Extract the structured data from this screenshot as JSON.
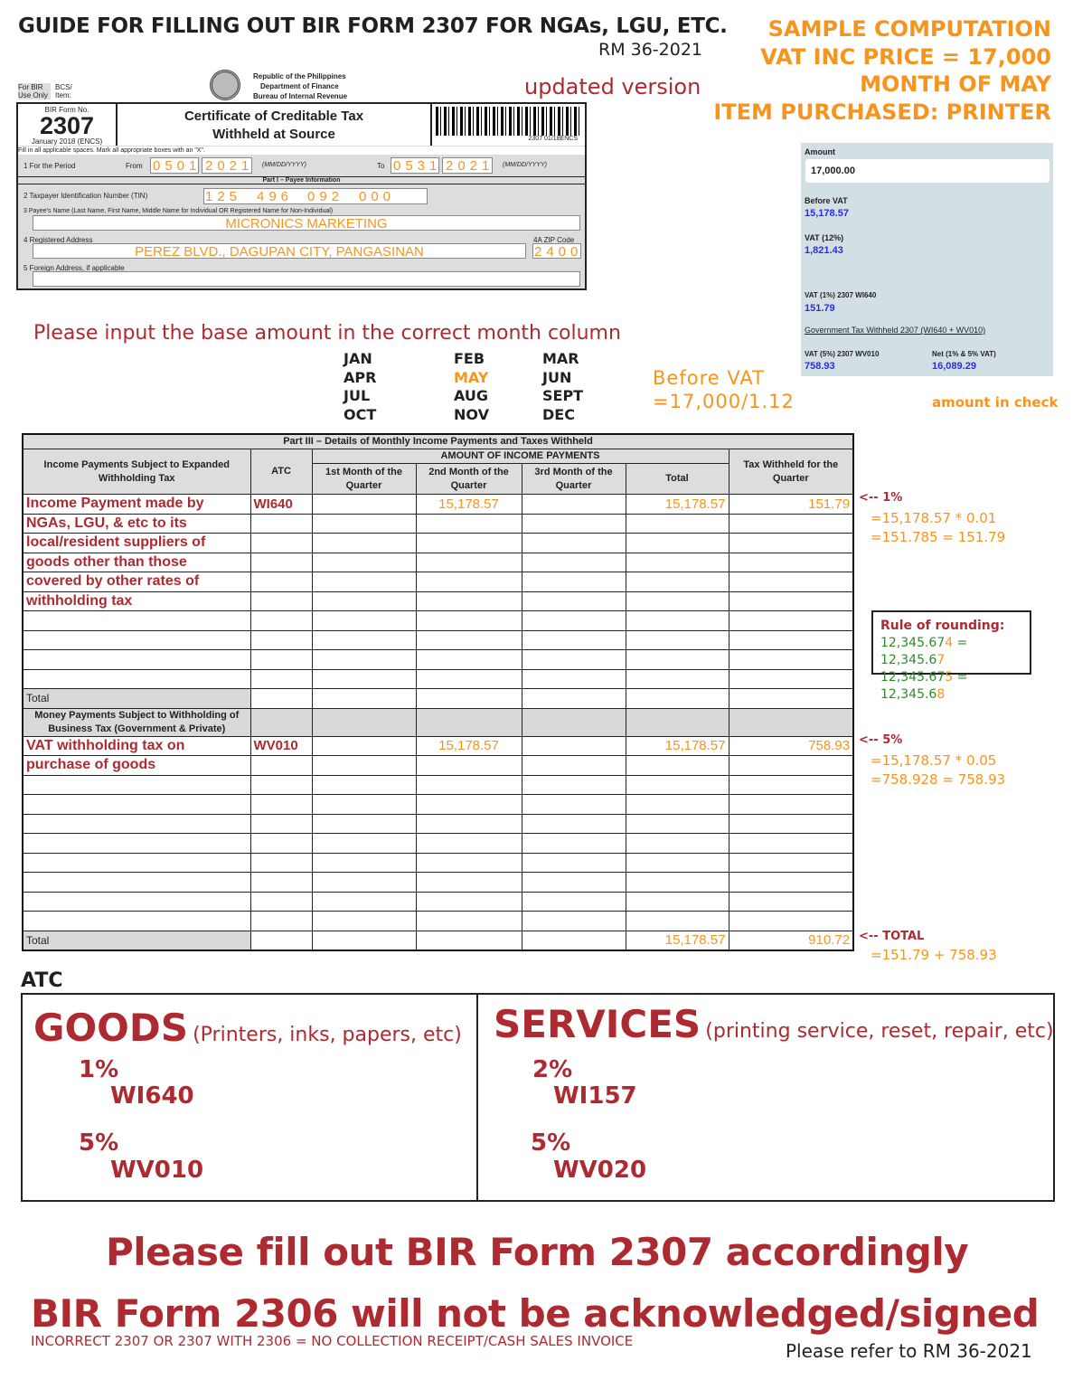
{
  "header": {
    "title": "GUIDE FOR FILLING OUT BIR FORM 2307 FOR NGAs, LGU, ETC.",
    "ref": "RM 36-2021",
    "updated_label": "updated version"
  },
  "sample": {
    "lines": [
      "SAMPLE COMPUTATION",
      "VAT INC PRICE = 17,000",
      "MONTH OF MAY",
      "ITEM PURCHASED: PRINTER"
    ]
  },
  "form": {
    "bir_use": "For BIR Use Only",
    "bcs": "BCS/ Item:",
    "agency": [
      "Republic of the Philippines",
      "Department of Finance",
      "Bureau of Internal Revenue"
    ],
    "form_no_label": "BIR Form No.",
    "form_no": "2307",
    "form_date": "January 2018 (ENCS)",
    "form_title_1": "Certificate of Creditable Tax",
    "form_title_2": "Withheld at Source",
    "barcode_code": "2307 01/18ENCS",
    "instructions": "Fill in all applicable spaces. Mark all appropriate boxes with an \"X\".",
    "period_label": "1    For the Period",
    "from_label": "From",
    "from_mmdd": "0501",
    "from_yyyy": "2021",
    "fmt": "(MM/DD/YYYY)",
    "to_label": "To",
    "to_mmdd": "0531",
    "to_yyyy": "2021",
    "part1": "Part I – Payee Information",
    "tin_label": "2   Taxpayer Identification Number (TIN)",
    "tin": [
      "125",
      "496",
      "092",
      "000"
    ],
    "name_label": "3   Payee's Name (Last Name, First Name, Middle Name for Individual OR Registered Name for Non-Individual)",
    "name": "MICRONICS MARKETING",
    "addr_label": "4   Registered Address",
    "addr": "PEREZ BLVD., DAGUPAN CITY, PANGASINAN",
    "zip_label": "4A  ZIP Code",
    "zip": "2400",
    "foreign_label": "5   Foreign Address, if applicable"
  },
  "panel": {
    "amount_label": "Amount",
    "amount": "17,000.00",
    "before_vat_label": "Before VAT",
    "before_vat": "15,178.57",
    "vat_label": "VAT (12%)",
    "vat": "1,821.43",
    "vat1_label": "VAT (1%) 2307 WI640",
    "vat1": "151.79",
    "gov_label": "Government Tax Withheld 2307 (WI640 + WV010)",
    "vat5_label": "VAT (5%) 2307 WV010",
    "vat5": "758.93",
    "net_label": "Net (1% & 5% VAT)",
    "net": "16,089.29",
    "check_note": "amount in check"
  },
  "months": {
    "instruction": "Please input the base amount in the correct month column",
    "grid": [
      [
        "JAN",
        "FEB",
        "MAR"
      ],
      [
        "APR",
        "MAY",
        "JUN"
      ],
      [
        "JUL",
        "AUG",
        "SEPT"
      ],
      [
        "OCT",
        "NOV",
        "DEC"
      ]
    ],
    "highlight": "MAY",
    "before_vat_note_1": "Before VAT",
    "before_vat_note_2": "=17,000/1.12"
  },
  "table": {
    "part3": "Part III – Details of Monthly Income Payments and Taxes Withheld",
    "col_desc": "Income Payments Subject to Expanded Withholding Tax",
    "col_atc": "ATC",
    "col_amount": "AMOUNT OF INCOME PAYMENTS",
    "col_m1": "1st Month of the Quarter",
    "col_m2": "2nd Month of the Quarter",
    "col_m3": "3rd Month of the Quarter",
    "col_total": "Total",
    "col_tax": "Tax Withheld for the Quarter",
    "ewt_rows": [
      {
        "desc": "Income Payment made by",
        "atc": "WI640",
        "m2": "15,178.57",
        "total": "15,178.57",
        "tax": "151.79"
      },
      {
        "desc": "NGAs, LGU, & etc to its"
      },
      {
        "desc": "local/resident suppliers of"
      },
      {
        "desc": "goods other than those"
      },
      {
        "desc": "covered by other rates of"
      },
      {
        "desc": "withholding tax"
      },
      {},
      {},
      {},
      {}
    ],
    "ewt_total_label": "Total",
    "money_header": "Money Payments Subject to Withholding of Business Tax (Government & Private)",
    "bt_rows": [
      {
        "desc": "VAT withholding tax on",
        "atc": "WV010",
        "m2": "15,178.57",
        "total": "15,178.57",
        "tax": "758.93"
      },
      {
        "desc": "purchase of goods"
      },
      {},
      {},
      {},
      {},
      {},
      {},
      {},
      {}
    ],
    "bt_total_label": "Total",
    "bt_total": "15,178.57",
    "bt_total_tax": "910.72"
  },
  "notes": {
    "one_pct": "<-- 1%",
    "one_calc_1": "=15,178.57 * 0.01",
    "one_calc_2": "=151.785 = 151.79",
    "rounding_title": "Rule of rounding:",
    "r1a": "12,345.67",
    "r1b": "4",
    "r1c": " = 12,345.6",
    "r1d": "7",
    "r2a": "12,345.67",
    "r2b": "5",
    "r2c": " = 12,345.6",
    "r2d": "8",
    "five_pct": "<-- 5%",
    "five_calc_1": "=15,178.57 * 0.05",
    "five_calc_2": "=758.928 = 758.93",
    "total": "<-- TOTAL",
    "total_calc": "=151.79 + 758.93"
  },
  "atc": {
    "heading": "ATC",
    "goods": {
      "title": "GOODS",
      "desc": "(Printers, inks, papers, etc)",
      "rate1": "1%",
      "code1": "WI640",
      "rate2": "5%",
      "code2": "WV010"
    },
    "services": {
      "title": "SERVICES",
      "desc": "(printing service, reset, repair, etc)",
      "rate1": "2%",
      "code1": "WI157",
      "rate2": "5%",
      "code2": "WV020"
    }
  },
  "footer": {
    "line1": "Please fill out BIR Form 2307 accordingly",
    "line2": "BIR Form 2306 will not be acknowledged/signed",
    "sub": "INCORRECT 2307 OR 2307 WITH 2306 = NO COLLECTION RECEIPT/CASH SALES INVOICE",
    "refer": "Please refer to RM 36-2021"
  },
  "colors": {
    "red": "#ad2a30",
    "orange": "#f7941d",
    "green": "#2e8b2e",
    "blue": "#2b2bf0",
    "panel": "#d3e0e3"
  }
}
